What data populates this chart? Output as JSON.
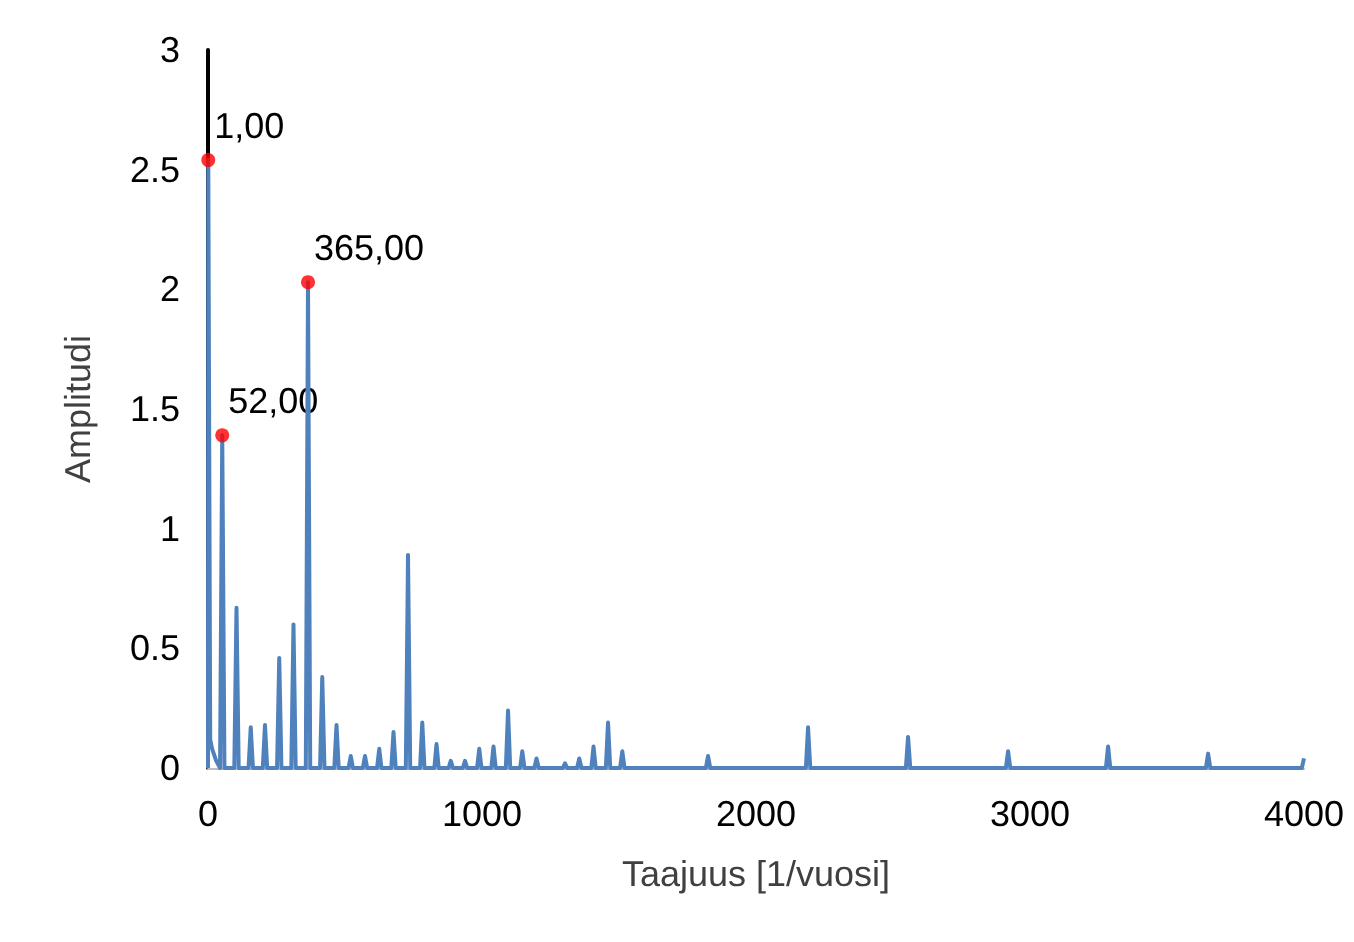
{
  "chart_data": {
    "type": "line",
    "xlabel": "Taajuus [1/vuosi]",
    "ylabel": "Amplitudi",
    "xlim": [
      0,
      4000
    ],
    "xticks": [
      0,
      1000,
      2000,
      3000,
      4000
    ],
    "ylim": [
      0,
      3
    ],
    "yticks": [
      0,
      0.5,
      1,
      1.5,
      2,
      2.5,
      3
    ],
    "grid": false,
    "marker": "none",
    "annotations": [
      {
        "text": "1,00",
        "x": 1,
        "y": 2.54
      },
      {
        "text": "52,00",
        "x": 52,
        "y": 1.39
      },
      {
        "text": "365,00",
        "x": 365,
        "y": 2.03
      }
    ],
    "series": [
      {
        "color": "#4f81bd",
        "x": [
          0,
          1,
          8,
          15,
          30,
          44,
          52,
          60,
          96,
          104,
          112,
          148,
          156,
          164,
          200,
          208,
          216,
          252,
          260,
          268,
          304,
          312,
          320,
          357,
          365,
          373,
          409,
          417,
          425,
          461,
          469,
          477,
          513,
          521,
          529,
          565,
          573,
          581,
          617,
          625,
          633,
          669,
          677,
          685,
          722,
          730,
          738,
          774,
          782,
          790,
          826,
          834,
          842,
          878,
          886,
          894,
          930,
          938,
          946,
          982,
          990,
          998,
          1034,
          1042,
          1050,
          1087,
          1095,
          1103,
          1139,
          1147,
          1155,
          1191,
          1199,
          1207,
          1295,
          1303,
          1311,
          1347,
          1355,
          1363,
          1399,
          1407,
          1415,
          1452,
          1460,
          1468,
          1504,
          1512,
          1520,
          1817,
          1825,
          1833,
          2182,
          2190,
          2198,
          2547,
          2555,
          2563,
          2912,
          2920,
          2928,
          3277,
          3285,
          3293,
          3642,
          3650,
          3658,
          3992,
          4000
        ],
        "values": [
          0,
          2.54,
          0.12,
          0.08,
          0.03,
          0,
          1.39,
          0,
          0,
          0.67,
          0,
          0,
          0.17,
          0,
          0,
          0.18,
          0,
          0,
          0.46,
          0,
          0,
          0.6,
          0,
          0,
          2.03,
          0,
          0,
          0.38,
          0,
          0,
          0.18,
          0,
          0,
          0.05,
          0,
          0,
          0.05,
          0,
          0,
          0.08,
          0,
          0,
          0.15,
          0,
          0,
          0.89,
          0,
          0,
          0.19,
          0,
          0,
          0.1,
          0,
          0,
          0.03,
          0,
          0,
          0.03,
          0,
          0,
          0.08,
          0,
          0,
          0.09,
          0,
          0,
          0.24,
          0,
          0,
          0.07,
          0,
          0,
          0.04,
          0,
          0,
          0.02,
          0,
          0,
          0.04,
          0,
          0,
          0.09,
          0,
          0,
          0.19,
          0,
          0,
          0.07,
          0,
          0,
          0.05,
          0,
          0,
          0.17,
          0,
          0,
          0.13,
          0,
          0,
          0.07,
          0,
          0,
          0.09,
          0,
          0,
          0.06,
          0,
          0,
          0.04
        ]
      },
      {
        "type": "scatter",
        "color": "#ff0000",
        "marker": "circle",
        "x": [
          1,
          52,
          365
        ],
        "values": [
          2.54,
          1.39,
          2.03
        ]
      }
    ]
  }
}
